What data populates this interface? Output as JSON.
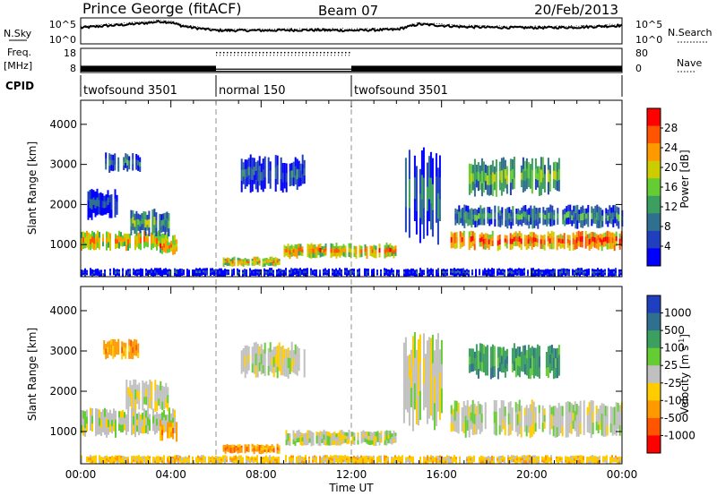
{
  "header": {
    "station": "Prince George (fitACF)",
    "beam": "Beam 07",
    "date": "20/Feb/2013"
  },
  "chart_data": [
    {
      "type": "line",
      "panel": "noise",
      "left_label": "N.Sky",
      "right_label": "N.Search",
      "left_ticks": [
        "10^5",
        "10^0"
      ],
      "right_ticks": [
        "10^5",
        "10^0"
      ],
      "x_hours": [
        0,
        1,
        2,
        3,
        3.5,
        4,
        4.5,
        5,
        6,
        8,
        10,
        12,
        14,
        14.5,
        15,
        16,
        17,
        18,
        20,
        22,
        24
      ],
      "n_sky_log": [
        3.2,
        3.6,
        3.9,
        4.3,
        4.6,
        4.4,
        3.6,
        3.2,
        2.6,
        2.6,
        2.7,
        2.6,
        2.8,
        3.4,
        4.0,
        3.7,
        3.4,
        3.3,
        3.2,
        3.3,
        3.7
      ]
    },
    {
      "type": "line",
      "panel": "frequency-nave",
      "left_label_1": "Freq.",
      "left_label_2": "[MHz]",
      "right_label": "Nave",
      "left_ticks": [
        "18",
        "8"
      ],
      "right_ticks": [
        "80",
        "0"
      ],
      "segments": [
        {
          "start_h": 0,
          "end_h": 6,
          "freq_mhz": 10.8
        },
        {
          "start_h": 6,
          "end_h": 12,
          "freq_mhz": 10.5,
          "nave_dotted": 66
        },
        {
          "start_h": 12,
          "end_h": 24,
          "freq_mhz": 10.8
        }
      ]
    },
    {
      "type": "table",
      "panel": "cpid",
      "label": "CPID",
      "modes": [
        {
          "start_h": 0,
          "end_h": 6,
          "name": "twofsound 3501"
        },
        {
          "start_h": 6,
          "end_h": 12,
          "name": "normal 150"
        },
        {
          "start_h": 12,
          "end_h": 24,
          "name": "twofsound 3501"
        }
      ]
    },
    {
      "type": "heatmap",
      "panel": "power",
      "ylabel": "Slant Range [km]",
      "ylim": [
        200,
        4600
      ],
      "yticks": [
        1000,
        2000,
        3000,
        4000
      ],
      "colorbar_label": "Power [dB]",
      "colorbar_ticks": [
        "4",
        "8",
        "12",
        "16",
        "20",
        "24",
        "28"
      ],
      "colors": [
        "#0000ff",
        "#1f3fbf",
        "#2f6f8f",
        "#3a9f5f",
        "#66cc33",
        "#cccc00",
        "#ff9900",
        "#ff5500",
        "#ff0000"
      ],
      "patches": [
        {
          "t0": 0.0,
          "t1": 4.2,
          "r0": 850,
          "r1": 1350,
          "v": 21
        },
        {
          "t0": 2.2,
          "t1": 3.9,
          "r0": 1200,
          "r1": 1900,
          "v": 12
        },
        {
          "t0": 3.5,
          "t1": 4.3,
          "r0": 750,
          "r1": 1150,
          "v": 23
        },
        {
          "t0": 1.0,
          "t1": 2.6,
          "r0": 2800,
          "r1": 3300,
          "v": 8
        },
        {
          "t0": 0.3,
          "t1": 1.6,
          "r0": 1600,
          "r1": 2400,
          "v": 5
        },
        {
          "t0": 7.1,
          "t1": 9.9,
          "r0": 2300,
          "r1": 3250,
          "v": 6
        },
        {
          "t0": 6.3,
          "t1": 8.8,
          "r0": 450,
          "r1": 700,
          "v": 21
        },
        {
          "t0": 9.0,
          "t1": 14.0,
          "r0": 650,
          "r1": 1050,
          "v": 22
        },
        {
          "t0": 14.3,
          "t1": 16.0,
          "r0": 1000,
          "r1": 3500,
          "v": 7
        },
        {
          "t0": 16.4,
          "t1": 24.0,
          "r0": 850,
          "r1": 1350,
          "v": 25
        },
        {
          "t0": 16.5,
          "t1": 24.0,
          "r0": 1400,
          "r1": 2000,
          "v": 10
        },
        {
          "t0": 17.2,
          "t1": 21.2,
          "r0": 2200,
          "r1": 3200,
          "v": 14
        },
        {
          "t0": 0.0,
          "t1": 24.0,
          "r0": 200,
          "r1": 420,
          "v": 3
        }
      ]
    },
    {
      "type": "heatmap",
      "panel": "velocity",
      "xlabel": "Time UT",
      "ylabel": "Slant Range [km]",
      "ylim": [
        200,
        4600
      ],
      "yticks": [
        1000,
        2000,
        3000,
        4000
      ],
      "xticks": [
        "00:00",
        "04:00",
        "08:00",
        "12:00",
        "16:00",
        "20:00",
        "00:00"
      ],
      "colorbar_label": "Velocity [m s",
      "colorbar_label_exponent": "-1",
      "colorbar_label_close": "]",
      "colorbar_ticks": [
        "1000",
        "500",
        "100",
        "25",
        "-25",
        "-100",
        "-500",
        "-1000"
      ],
      "colors": [
        "#1f3fbf",
        "#2f6f8f",
        "#3a9f5f",
        "#66cc33",
        "#c0c0c0",
        "#ffcc00",
        "#ff9900",
        "#ff5500",
        "#ff0000"
      ],
      "patches": [
        {
          "t0": 0.0,
          "t1": 4.2,
          "r0": 850,
          "r1": 1600,
          "v": 4
        },
        {
          "t0": 2.0,
          "t1": 3.9,
          "r0": 1500,
          "r1": 2300,
          "v": 4
        },
        {
          "t0": 3.5,
          "t1": 4.3,
          "r0": 750,
          "r1": 1300,
          "v": 6
        },
        {
          "t0": 1.0,
          "t1": 2.6,
          "r0": 2800,
          "r1": 3300,
          "v": 6
        },
        {
          "t0": 7.1,
          "t1": 9.9,
          "r0": 2300,
          "r1": 3250,
          "v": 4
        },
        {
          "t0": 6.3,
          "t1": 8.8,
          "r0": 450,
          "r1": 700,
          "v": 6
        },
        {
          "t0": 9.0,
          "t1": 14.0,
          "r0": 650,
          "r1": 1050,
          "v": 4
        },
        {
          "t0": 14.3,
          "t1": 16.0,
          "r0": 1000,
          "r1": 3500,
          "v": 4
        },
        {
          "t0": 16.4,
          "t1": 24.0,
          "r0": 850,
          "r1": 1800,
          "v": 4
        },
        {
          "t0": 17.2,
          "t1": 21.2,
          "r0": 2300,
          "r1": 3200,
          "v": 2
        },
        {
          "t0": 0.0,
          "t1": 24.0,
          "r0": 200,
          "r1": 420,
          "v": 5
        }
      ]
    }
  ]
}
